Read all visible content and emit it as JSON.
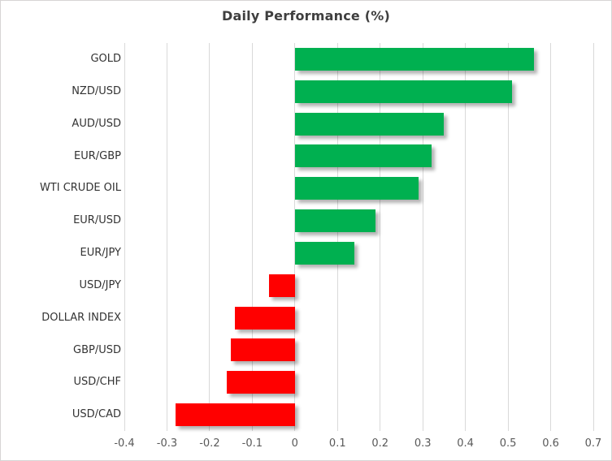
{
  "chart_data": {
    "type": "bar",
    "orientation": "horizontal",
    "title": "Daily Performance (%)",
    "categories": [
      "GOLD",
      "NZD/USD",
      "AUD/USD",
      "EUR/GBP",
      "WTI CRUDE OIL",
      "EUR/USD",
      "EUR/JPY",
      "USD/JPY",
      "DOLLAR INDEX",
      "GBP/USD",
      "USD/CHF",
      "USD/CAD"
    ],
    "values": [
      0.56,
      0.51,
      0.35,
      0.32,
      0.29,
      0.19,
      0.14,
      -0.06,
      -0.14,
      -0.15,
      -0.16,
      -0.28
    ],
    "xlim": [
      -0.4,
      0.7
    ],
    "xticks": [
      -0.4,
      -0.3,
      -0.2,
      -0.1,
      0,
      0.1,
      0.2,
      0.3,
      0.4,
      0.5,
      0.6,
      0.7
    ],
    "xtick_labels": [
      "-0.4",
      "-0.3",
      "-0.2",
      "-0.1",
      "0",
      "0.1",
      "0.2",
      "0.3",
      "0.4",
      "0.5",
      "0.6",
      "0.7"
    ],
    "grid": "vertical",
    "legend": "none",
    "colors": {
      "positive": "#00b050",
      "negative": "#ff0000",
      "gridline": "#d9d9d9",
      "title": "#3f3f3f",
      "category_label": "#333333",
      "axis_label": "#595959",
      "border": "#d7d5d5",
      "background": "#ffffff"
    }
  }
}
